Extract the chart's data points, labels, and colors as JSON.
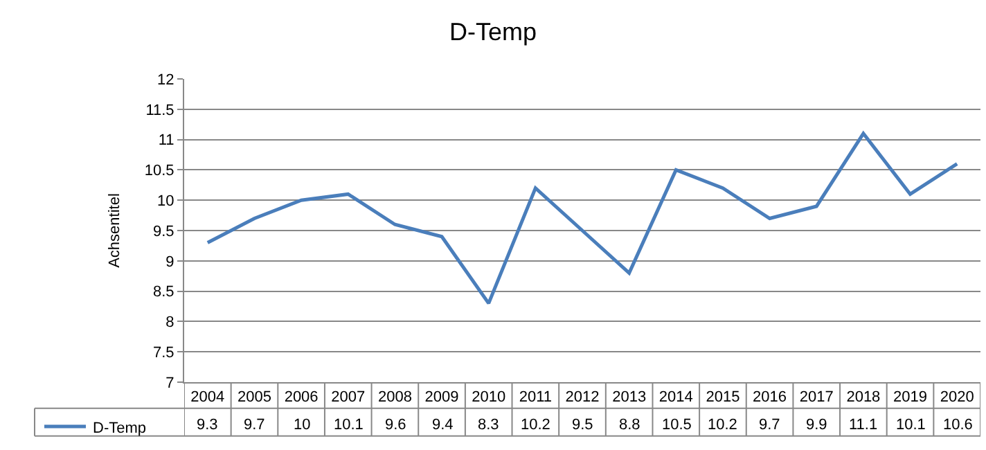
{
  "chart_data": {
    "type": "line",
    "title": "D-Temp",
    "ylabel": "Achsentitel",
    "categories": [
      "2004",
      "2005",
      "2006",
      "2007",
      "2008",
      "2009",
      "2010",
      "2011",
      "2012",
      "2013",
      "2014",
      "2015",
      "2016",
      "2017",
      "2018",
      "2019",
      "2020"
    ],
    "series": [
      {
        "name": "D-Temp",
        "color": "#4a7ebb",
        "values": [
          9.3,
          9.7,
          10,
          10.1,
          9.6,
          9.4,
          8.3,
          10.2,
          9.5,
          8.8,
          10.5,
          10.2,
          9.7,
          9.9,
          11.1,
          10.1,
          10.6
        ]
      }
    ],
    "ylim": [
      7,
      12
    ],
    "yticks": [
      7,
      7.5,
      8,
      8.5,
      9,
      9.5,
      10,
      10.5,
      11,
      11.5,
      12
    ],
    "grid": "y",
    "legend": "bottom left",
    "data_labels": true,
    "marker": "none",
    "line_style": "solid"
  }
}
